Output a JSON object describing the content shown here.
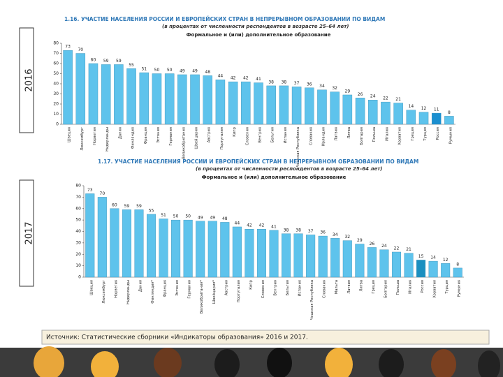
{
  "side_labels": [
    "2016",
    "2017"
  ],
  "source": "Источник: Статистические сборники «Индикаторы образования» 2016 и 2017.",
  "chart_data": [
    {
      "type": "bar",
      "title": "1.16. УЧАСТИЕ НАСЕЛЕНИЯ РОССИИ И ЕВРОПЕЙСКИХ СТРАН В НЕПРЕРЫВНОМ ОБРАЗОВАНИИ ПО ВИДАМ",
      "subtitle": "(в процентах от численности респондентов в возрасте 25–64 лет)",
      "chart_title": "Формальное и (или) дополнительное образование",
      "categories": [
        "Швеция",
        "Люксембург",
        "Норвегия",
        "Нидерланды",
        "Дания",
        "Финляндия",
        "Франция",
        "Эстония",
        "Германия",
        "Великобритания",
        "Швейцария",
        "Австрия",
        "Португалия",
        "Кипр",
        "Словения",
        "Венгрия",
        "Бельгия",
        "Испания",
        "Чешская Республика",
        "Словакия",
        "Ирландия",
        "Латвия",
        "Литва",
        "Болгария",
        "Польша",
        "Италия",
        "Хорватия",
        "Греция",
        "Турция",
        "Россия",
        "Румыния"
      ],
      "values": [
        73,
        70,
        60,
        59,
        59,
        55,
        51,
        50,
        50,
        49,
        49,
        48,
        44,
        42,
        42,
        41,
        38,
        38,
        37,
        36,
        34,
        32,
        29,
        26,
        24,
        22,
        21,
        14,
        12,
        11,
        8
      ],
      "colors": [
        "#5ec3ec",
        "#5ec3ec",
        "#5ec3ec",
        "#5ec3ec",
        "#5ec3ec",
        "#5ec3ec",
        "#5ec3ec",
        "#5ec3ec",
        "#5ec3ec",
        "#5ec3ec",
        "#5ec3ec",
        "#5ec3ec",
        "#5ec3ec",
        "#5ec3ec",
        "#5ec3ec",
        "#5ec3ec",
        "#5ec3ec",
        "#5ec3ec",
        "#5ec3ec",
        "#5ec3ec",
        "#5ec3ec",
        "#5ec3ec",
        "#5ec3ec",
        "#5ec3ec",
        "#5ec3ec",
        "#5ec3ec",
        "#5ec3ec",
        "#5ec3ec",
        "#5ec3ec",
        "#1b8fd0",
        "#5ec3ec"
      ],
      "ylim": [
        0,
        80
      ],
      "yticks": [
        0,
        10,
        20,
        30,
        40,
        50,
        60,
        70,
        80
      ],
      "grid": false
    },
    {
      "type": "bar",
      "title": "1.17. УЧАСТИЕ НАСЕЛЕНИЯ РОССИИ И ЕВРОПЕЙСКИХ СТРАН В НЕПРЕРЫВНОМ ОБРАЗОВАНИИ ПО ВИДАМ",
      "subtitle": "(в процентах от численности респондентов в возрасте 25–64 лет)",
      "chart_title": "Формальное и (или) дополнительное образование",
      "categories": [
        "Швеция",
        "Люксембург",
        "Норвегия",
        "Нидерланды",
        "Дания",
        "Финляндия*",
        "Франция",
        "Эстония",
        "Германия",
        "Великобритания*",
        "Швейцария*",
        "Австрия",
        "Португалия",
        "Кипр",
        "Словения",
        "Венгрия",
        "Бельгия",
        "Испания",
        "Чешская Республика",
        "Словакия",
        "Мальта",
        "Латвия",
        "Литва",
        "Греция",
        "Болгария",
        "Польша",
        "Италия",
        "Россия",
        "Хорватия",
        "Турция",
        "Румыния"
      ],
      "values": [
        73,
        70,
        60,
        59,
        59,
        55,
        51,
        50,
        50,
        49,
        49,
        48,
        44,
        42,
        42,
        41,
        38,
        38,
        37,
        36,
        34,
        32,
        29,
        26,
        24,
        22,
        21,
        15,
        14,
        12,
        8
      ],
      "colors": [
        "#5ec3ec",
        "#5ec3ec",
        "#5ec3ec",
        "#5ec3ec",
        "#5ec3ec",
        "#5ec3ec",
        "#5ec3ec",
        "#5ec3ec",
        "#5ec3ec",
        "#5ec3ec",
        "#5ec3ec",
        "#5ec3ec",
        "#5ec3ec",
        "#5ec3ec",
        "#5ec3ec",
        "#5ec3ec",
        "#5ec3ec",
        "#5ec3ec",
        "#5ec3ec",
        "#5ec3ec",
        "#5ec3ec",
        "#5ec3ec",
        "#5ec3ec",
        "#5ec3ec",
        "#5ec3ec",
        "#5ec3ec",
        "#5ec3ec",
        "#1b8fc0",
        "#5ec3ec",
        "#5ec3ec",
        "#5ec3ec"
      ],
      "ylim": [
        0,
        80
      ],
      "yticks": [
        0,
        10,
        20,
        30,
        40,
        50,
        60,
        70,
        80
      ],
      "grid": false
    }
  ]
}
